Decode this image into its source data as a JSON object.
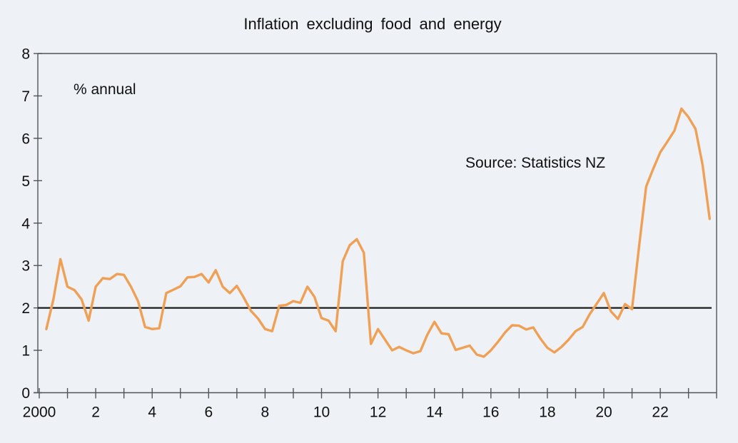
{
  "chart_data": {
    "type": "line",
    "title": "Inflation excluding food and energy",
    "unit_label": "% annual",
    "source_label": "Source: Statistics NZ",
    "series": [
      {
        "name": "Inflation excluding food and energy (% annual, quarterly)",
        "x_start": 2000.25,
        "x_step": 0.25,
        "values": [
          1.5,
          2.2,
          3.15,
          2.5,
          2.42,
          2.2,
          1.7,
          2.5,
          2.7,
          2.68,
          2.8,
          2.78,
          2.5,
          2.16,
          1.55,
          1.5,
          1.52,
          2.35,
          2.43,
          2.51,
          2.72,
          2.73,
          2.8,
          2.6,
          2.89,
          2.5,
          2.35,
          2.52,
          2.24,
          1.93,
          1.75,
          1.5,
          1.45,
          2.05,
          2.07,
          2.16,
          2.12,
          2.5,
          2.26,
          1.76,
          1.7,
          1.45,
          3.1,
          3.48,
          3.62,
          3.3,
          1.15,
          1.5,
          1.25,
          1.0,
          1.08,
          1.0,
          0.93,
          0.98,
          1.37,
          1.67,
          1.4,
          1.38,
          1.01,
          1.06,
          1.11,
          0.9,
          0.85,
          1.0,
          1.2,
          1.42,
          1.59,
          1.58,
          1.49,
          1.54,
          1.28,
          1.06,
          0.95,
          1.08,
          1.25,
          1.45,
          1.55,
          1.85,
          2.1,
          2.35,
          1.92,
          1.74,
          2.09,
          1.97,
          3.45,
          4.86,
          5.28,
          5.67,
          5.92,
          6.18,
          6.7,
          6.5,
          6.22,
          5.37,
          4.1
        ]
      }
    ],
    "x_axis": {
      "min": 2000,
      "max": 2024,
      "tick_interval_years": 1,
      "labeled_years": [
        2000,
        2002,
        2004,
        2006,
        2008,
        2010,
        2012,
        2014,
        2016,
        2018,
        2020,
        2022
      ],
      "tick_labels": [
        "2000",
        "2",
        "4",
        "6",
        "8",
        "10",
        "12",
        "14",
        "16",
        "18",
        "20",
        "22"
      ]
    },
    "y_axis": {
      "min": 0,
      "max": 8,
      "tick_interval": 1,
      "tick_labels": [
        "0",
        "1",
        "2",
        "3",
        "4",
        "5",
        "6",
        "7",
        "8"
      ]
    },
    "reference_line": {
      "value": 2
    },
    "legend": "none",
    "grid": "off",
    "colors": {
      "line": "#f0a055",
      "reference_line": "#1b1b1b",
      "axis": "#50555b",
      "background": "#eef1f6",
      "text": "#101010"
    }
  }
}
